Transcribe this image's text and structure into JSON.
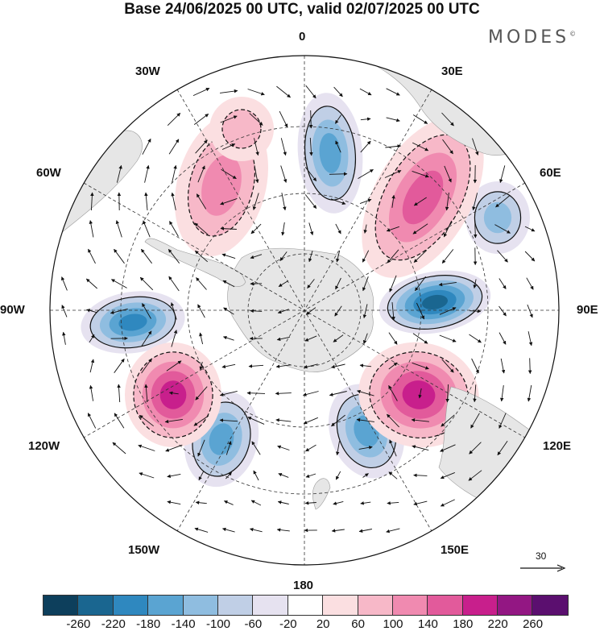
{
  "title": "Base 24/06/2025 00 UTC, valid 02/07/2025 00 UTC",
  "brand": {
    "name": "MODES",
    "mark": "©"
  },
  "map": {
    "projection": "south-polar-stereographic",
    "longitude_labels": [
      "0",
      "30E",
      "60E",
      "90E",
      "120E",
      "150E",
      "180",
      "150W",
      "120W",
      "90W",
      "60W",
      "30W"
    ],
    "land_color": "#e6e6e6",
    "icons": [
      "wind-vector-arrows",
      "graticule",
      "coastline"
    ]
  },
  "reference_vector": {
    "label": "30"
  },
  "colorbar": {
    "colors": [
      "#0d3f5c",
      "#1a6690",
      "#2f88bf",
      "#5aa4d2",
      "#8fbde0",
      "#c0cfe6",
      "#e6e2f0",
      "#ffffff",
      "#fbdfe1",
      "#f7b8c8",
      "#f08ab0",
      "#e25a9b",
      "#c81f8c",
      "#931783",
      "#5b0f6f"
    ],
    "tick_labels": [
      "-260",
      "-220",
      "-180",
      "-140",
      "-100",
      "-60",
      "-20",
      "20",
      "60",
      "100",
      "140",
      "180",
      "220",
      "260"
    ]
  },
  "anomalies": [
    {
      "name": "neg-0",
      "level": -150
    },
    {
      "name": "neg-90e",
      "level": -230
    },
    {
      "name": "neg-90w",
      "level": -190
    },
    {
      "name": "neg-150e",
      "level": -170
    },
    {
      "name": "neg-60e",
      "level": -120
    },
    {
      "name": "neg-130w",
      "level": -150
    },
    {
      "name": "pos-45e",
      "level": 170
    },
    {
      "name": "pos-120e",
      "level": 190
    },
    {
      "name": "pos-110w",
      "level": 190
    },
    {
      "name": "pos-40w",
      "level": 130
    },
    {
      "name": "pos-20w",
      "level": 90
    }
  ]
}
